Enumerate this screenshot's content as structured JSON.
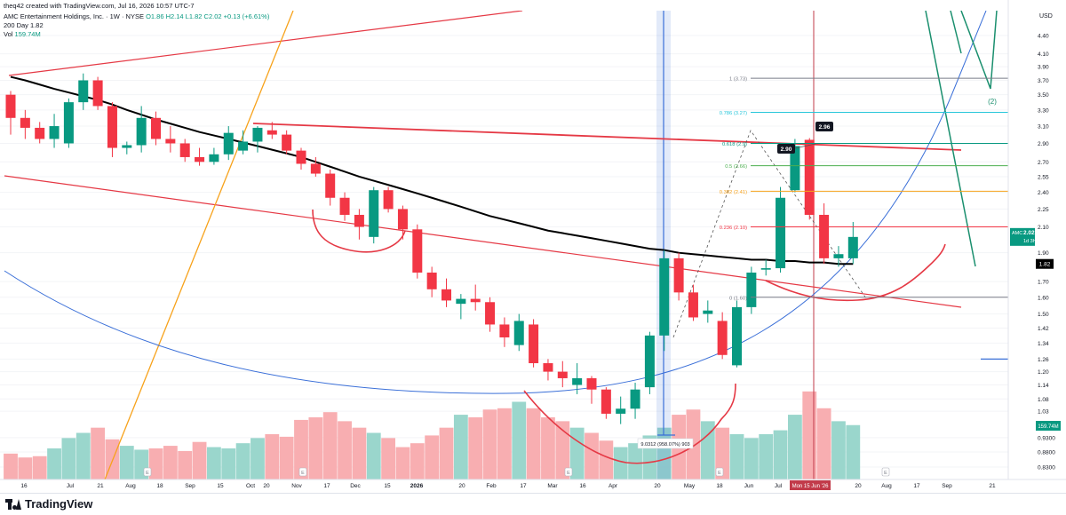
{
  "header": {
    "created_by": "theq42 created with TradingView.com, Jul 16, 2026 10:57 UTC-7",
    "title": "AMC Entertainment Holdings, Inc. · 1W · NYSE",
    "ohlc": "O1.86 H2.14 L1.82 C2.02 +0.13 (+6.61%)",
    "ma_label": "200 Day",
    "ma_value": "1.82",
    "vol_label": "Vol",
    "vol_value": "159.74M"
  },
  "footer": {
    "brand": "TradingView"
  },
  "colors": {
    "up": "#089981",
    "down": "#f23645",
    "up_vol": "#8fd1c7",
    "down_vol": "#f7a5a9",
    "ma": "#000000",
    "trend": "#e53945",
    "orange": "#f7a21b",
    "blue": "#3a6fd8",
    "teal": "#1a8f6e",
    "price_tag": "#089981"
  },
  "chart_data": {
    "type": "candlestick",
    "currency": "USD",
    "y_scale": "log",
    "y_ticks": [
      4.4,
      4.1,
      3.9,
      3.7,
      3.5,
      3.3,
      3.1,
      2.9,
      2.7,
      2.55,
      2.4,
      2.25,
      2.1,
      1.9,
      1.82,
      1.7,
      1.6,
      1.5,
      1.42,
      1.34,
      1.26,
      1.2,
      1.14,
      1.08,
      1.03,
      0.93,
      0.88,
      0.83
    ],
    "x_ticks": [
      "16",
      "Jul",
      "21",
      "Aug",
      "18",
      "Sep",
      "15",
      "Oct",
      "20",
      "Nov",
      "17",
      "Dec",
      "15",
      "2026",
      "20",
      "Feb",
      "17",
      "Mar",
      "16",
      "Apr",
      "20",
      "May",
      "18",
      "Jun",
      "Jul",
      "20",
      "Aug",
      "17",
      "Sep",
      "21"
    ],
    "candles": [
      {
        "o": 3.5,
        "h": 3.55,
        "l": 3.0,
        "c": 3.2
      },
      {
        "o": 3.2,
        "h": 3.3,
        "l": 2.95,
        "c": 3.08
      },
      {
        "o": 3.08,
        "h": 3.15,
        "l": 2.9,
        "c": 2.95
      },
      {
        "o": 2.95,
        "h": 3.25,
        "l": 2.85,
        "c": 3.1
      },
      {
        "o": 2.9,
        "h": 3.45,
        "l": 2.85,
        "c": 3.4
      },
      {
        "o": 3.4,
        "h": 3.8,
        "l": 3.3,
        "c": 3.7
      },
      {
        "o": 3.7,
        "h": 3.75,
        "l": 3.3,
        "c": 3.35
      },
      {
        "o": 3.35,
        "h": 3.4,
        "l": 2.75,
        "c": 2.85
      },
      {
        "o": 2.85,
        "h": 2.92,
        "l": 2.78,
        "c": 2.88
      },
      {
        "o": 2.88,
        "h": 3.35,
        "l": 2.8,
        "c": 3.2
      },
      {
        "o": 3.2,
        "h": 3.28,
        "l": 2.88,
        "c": 2.95
      },
      {
        "o": 2.95,
        "h": 3.1,
        "l": 2.8,
        "c": 2.9
      },
      {
        "o": 2.9,
        "h": 2.95,
        "l": 2.7,
        "c": 2.75
      },
      {
        "o": 2.75,
        "h": 2.85,
        "l": 2.66,
        "c": 2.7
      },
      {
        "o": 2.7,
        "h": 2.85,
        "l": 2.67,
        "c": 2.78
      },
      {
        "o": 2.78,
        "h": 3.1,
        "l": 2.72,
        "c": 3.02
      },
      {
        "o": 2.82,
        "h": 3.05,
        "l": 2.78,
        "c": 2.92
      },
      {
        "o": 2.92,
        "h": 3.1,
        "l": 2.8,
        "c": 3.08
      },
      {
        "o": 3.05,
        "h": 3.15,
        "l": 2.95,
        "c": 3.0
      },
      {
        "o": 3.0,
        "h": 3.05,
        "l": 2.78,
        "c": 2.82
      },
      {
        "o": 2.82,
        "h": 2.85,
        "l": 2.62,
        "c": 2.68
      },
      {
        "o": 2.68,
        "h": 2.75,
        "l": 2.55,
        "c": 2.58
      },
      {
        "o": 2.58,
        "h": 2.62,
        "l": 2.28,
        "c": 2.35
      },
      {
        "o": 2.35,
        "h": 2.4,
        "l": 2.15,
        "c": 2.2
      },
      {
        "o": 2.2,
        "h": 2.25,
        "l": 2.0,
        "c": 2.1
      },
      {
        "o": 2.02,
        "h": 2.45,
        "l": 1.97,
        "c": 2.42
      },
      {
        "o": 2.42,
        "h": 2.45,
        "l": 2.22,
        "c": 2.25
      },
      {
        "o": 2.25,
        "h": 2.28,
        "l": 2.0,
        "c": 2.08
      },
      {
        "o": 2.08,
        "h": 2.12,
        "l": 1.72,
        "c": 1.76
      },
      {
        "o": 1.76,
        "h": 1.8,
        "l": 1.6,
        "c": 1.65
      },
      {
        "o": 1.65,
        "h": 1.72,
        "l": 1.54,
        "c": 1.58
      },
      {
        "o": 1.56,
        "h": 1.62,
        "l": 1.47,
        "c": 1.59
      },
      {
        "o": 1.59,
        "h": 1.68,
        "l": 1.52,
        "c": 1.57
      },
      {
        "o": 1.57,
        "h": 1.6,
        "l": 1.4,
        "c": 1.44
      },
      {
        "o": 1.44,
        "h": 1.48,
        "l": 1.32,
        "c": 1.37
      },
      {
        "o": 1.33,
        "h": 1.5,
        "l": 1.3,
        "c": 1.46
      },
      {
        "o": 1.44,
        "h": 1.47,
        "l": 1.22,
        "c": 1.24
      },
      {
        "o": 1.24,
        "h": 1.26,
        "l": 1.16,
        "c": 1.2
      },
      {
        "o": 1.2,
        "h": 1.25,
        "l": 1.13,
        "c": 1.17
      },
      {
        "o": 1.14,
        "h": 1.24,
        "l": 1.1,
        "c": 1.17
      },
      {
        "o": 1.17,
        "h": 1.18,
        "l": 1.06,
        "c": 1.12
      },
      {
        "o": 1.12,
        "h": 1.13,
        "l": 1.0,
        "c": 1.02
      },
      {
        "o": 1.02,
        "h": 1.09,
        "l": 0.98,
        "c": 1.04
      },
      {
        "o": 1.04,
        "h": 1.15,
        "l": 1.0,
        "c": 1.12
      },
      {
        "o": 1.13,
        "h": 1.4,
        "l": 1.1,
        "c": 1.38
      },
      {
        "o": 1.38,
        "h": 1.92,
        "l": 1.3,
        "c": 1.86
      },
      {
        "o": 1.86,
        "h": 1.9,
        "l": 1.58,
        "c": 1.63
      },
      {
        "o": 1.63,
        "h": 1.68,
        "l": 1.46,
        "c": 1.48
      },
      {
        "o": 1.5,
        "h": 1.58,
        "l": 1.45,
        "c": 1.52
      },
      {
        "o": 1.46,
        "h": 1.51,
        "l": 1.26,
        "c": 1.28
      },
      {
        "o": 1.23,
        "h": 1.58,
        "l": 1.22,
        "c": 1.54
      },
      {
        "o": 1.54,
        "h": 1.8,
        "l": 1.5,
        "c": 1.76
      },
      {
        "o": 1.78,
        "h": 1.85,
        "l": 1.74,
        "c": 1.79
      },
      {
        "o": 1.79,
        "h": 2.45,
        "l": 1.76,
        "c": 2.35
      },
      {
        "o": 2.42,
        "h": 2.95,
        "l": 2.4,
        "c": 2.87
      },
      {
        "o": 2.94,
        "h": 2.96,
        "l": 2.16,
        "c": 2.2
      },
      {
        "o": 2.2,
        "h": 2.3,
        "l": 1.82,
        "c": 1.86
      },
      {
        "o": 1.86,
        "h": 1.95,
        "l": 1.8,
        "c": 1.89
      },
      {
        "o": 1.86,
        "h": 2.14,
        "l": 1.82,
        "c": 2.02
      }
    ],
    "volume_scale_max": 240,
    "volumes": [
      40,
      34,
      36,
      48,
      64,
      72,
      80,
      62,
      52,
      46,
      48,
      52,
      44,
      58,
      50,
      48,
      56,
      64,
      70,
      66,
      92,
      96,
      104,
      90,
      80,
      72,
      64,
      50,
      56,
      68,
      80,
      100,
      96,
      108,
      110,
      120,
      110,
      96,
      90,
      80,
      72,
      60,
      50,
      56,
      68,
      80,
      100,
      108,
      90,
      80,
      70,
      64,
      70,
      76,
      100,
      136,
      110,
      90,
      84
    ],
    "ma_200": [
      3.75,
      3.7,
      3.64,
      3.58,
      3.53,
      3.48,
      3.43,
      3.37,
      3.3,
      3.24,
      3.18,
      3.13,
      3.08,
      3.03,
      2.99,
      2.95,
      2.91,
      2.87,
      2.83,
      2.79,
      2.75,
      2.7,
      2.65,
      2.6,
      2.55,
      2.51,
      2.47,
      2.43,
      2.39,
      2.35,
      2.31,
      2.27,
      2.23,
      2.19,
      2.16,
      2.13,
      2.1,
      2.07,
      2.05,
      2.03,
      2.01,
      1.99,
      1.97,
      1.95,
      1.93,
      1.92,
      1.9,
      1.89,
      1.88,
      1.87,
      1.86,
      1.85,
      1.85,
      1.84,
      1.84,
      1.83,
      1.83,
      1.82,
      1.82
    ],
    "fib_levels": [
      {
        "ratio": "1 (3.73)",
        "value": 3.73,
        "color": "#787b86"
      },
      {
        "ratio": "0.786 (3.27)",
        "value": 3.27,
        "color": "#26c6da"
      },
      {
        "ratio": "0.618 (2.9)",
        "value": 2.9,
        "color": "#089981"
      },
      {
        "ratio": "0.5 (2.66)",
        "value": 2.66,
        "color": "#4caf50"
      },
      {
        "ratio": "0.382 (2.41)",
        "value": 2.41,
        "color": "#f7a21b"
      },
      {
        "ratio": "0.236 (2.10)",
        "value": 2.1,
        "color": "#f23645"
      },
      {
        "ratio": "0 (1.60)",
        "value": 1.6,
        "color": "#787b86"
      }
    ],
    "annotations": {
      "label_290": "2.90",
      "label_296": "2.96",
      "range_measure": "9.0312 (958.07%) 903",
      "wave_label": "(2)",
      "price_tag_last": "2.02",
      "price_tag_symbol": "AMC",
      "price_tag_timer": "1d 3h",
      "price_tag_ma": "1.82",
      "price_tag_vol": "159.74M",
      "date_tag": "Mon 15 Jun '26",
      "line_126": 1.26,
      "earnings_marker": "E"
    }
  }
}
